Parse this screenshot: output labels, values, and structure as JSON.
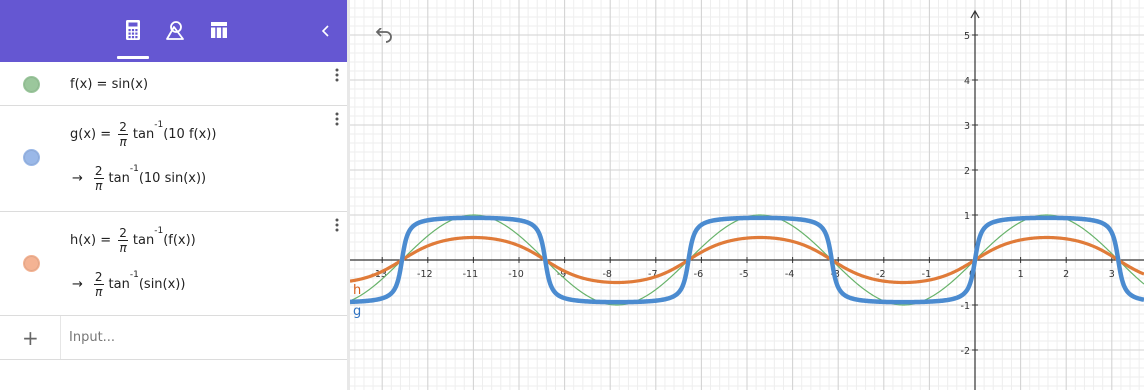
{
  "toolbar": {
    "tabs": [
      "algebra",
      "tools",
      "table"
    ],
    "active_tab": "algebra",
    "color": "#6557d2"
  },
  "algebra": {
    "rows": [
      {
        "name": "f",
        "color": "#9bc79c",
        "definition": "f(x) = sin(x)"
      },
      {
        "name": "g",
        "color": "#9ab8e8",
        "definition_prefix": "g(x) =",
        "frac_num": "2",
        "frac_den": "π",
        "definition_fn": "tan",
        "definition_sup": "-1",
        "definition_arg": "(10 f(x))",
        "value_arrow": "→",
        "value_fn": "tan",
        "value_sup": "-1",
        "value_arg": "(10 sin(x))"
      },
      {
        "name": "h",
        "color": "#f4b393",
        "definition_prefix": "h(x) =",
        "frac_num": "2",
        "frac_den": "π",
        "definition_fn": "tan",
        "definition_sup": "-1",
        "definition_arg": "(f(x))",
        "value_arrow": "→",
        "value_fn": "tan",
        "value_sup": "-1",
        "value_arg": "(sin(x))"
      }
    ],
    "input": {
      "plus": "+",
      "placeholder": "Input..."
    }
  },
  "graph": {
    "x_ticks": [
      "-13",
      "-12",
      "-11",
      "-10",
      "-9",
      "-8",
      "-7",
      "-6",
      "-5",
      "-4",
      "-3",
      "-2",
      "-1",
      "0",
      "1",
      "2",
      "3"
    ],
    "y_ticks": [
      "5",
      "4",
      "3",
      "2",
      "1",
      "-1",
      "-2"
    ],
    "curve_labels": {
      "h": "h",
      "g": "g"
    },
    "colors": {
      "f": "#68b36b",
      "g": "#4b8bd0",
      "h": "#e07b39",
      "label_h": "#d65f1b",
      "label_g": "#2f72c1"
    }
  }
}
